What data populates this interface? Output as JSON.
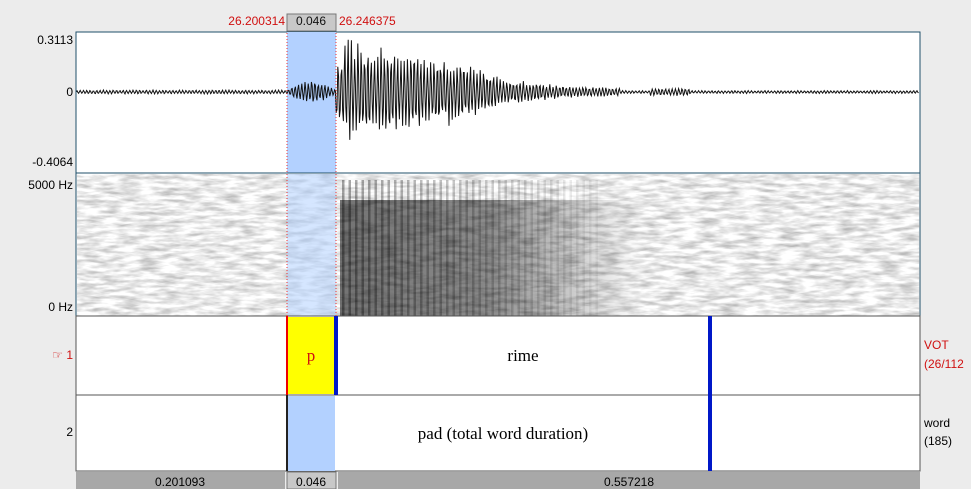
{
  "selection": {
    "start": "26.200314",
    "duration": "0.046",
    "end": "26.246375"
  },
  "waveform": {
    "max_label": "0.3113",
    "zero_label": "0",
    "min_label": "-0.4064"
  },
  "spectrogram": {
    "top_label": "5000 Hz",
    "bottom_label": "0 Hz"
  },
  "tiers": [
    {
      "number": "☞ 1",
      "intervals": [
        "p",
        "rime"
      ],
      "name": "VOT",
      "count": "(26/112"
    },
    {
      "number": "2",
      "intervals": [
        "pad (total word duration)"
      ],
      "name": "word",
      "count": "(185)"
    }
  ],
  "durations": [
    "0.201093",
    "0.046",
    "0.557218"
  ]
}
